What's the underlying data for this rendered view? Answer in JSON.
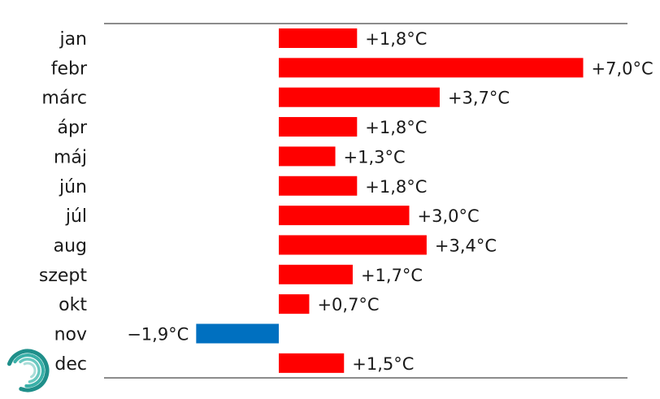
{
  "chart_data": {
    "type": "bar",
    "orientation": "horizontal",
    "categories": [
      "jan",
      "febr",
      "márc",
      "ápr",
      "máj",
      "jún",
      "júl",
      "aug",
      "szept",
      "okt",
      "nov",
      "dec"
    ],
    "values": [
      1.8,
      7.0,
      3.7,
      1.8,
      1.3,
      1.8,
      3.0,
      3.4,
      1.7,
      0.7,
      -1.9,
      1.5
    ],
    "data_labels": [
      "+1,8°C",
      "+7,0°C",
      "+3,7°C",
      "+1,8°C",
      "+1,3°C",
      "+1,8°C",
      "+3,0°C",
      "+3,4°C",
      "+1,7°C",
      "+0,7°C",
      "−1,9°C",
      "+1,5°C"
    ],
    "xlim": [
      -1.9,
      7.0
    ],
    "grid": false,
    "legend": "none",
    "colors": {
      "positive": "#ff0000",
      "negative": "#0070c0",
      "text": "#1a1a1a",
      "axis": "#1a1a1a"
    }
  },
  "logo": {
    "name": "swirl-logo-icon",
    "colors": [
      "#1f8f8a",
      "#3ab0a8",
      "#6ac8c0",
      "#a8ddd8"
    ]
  }
}
